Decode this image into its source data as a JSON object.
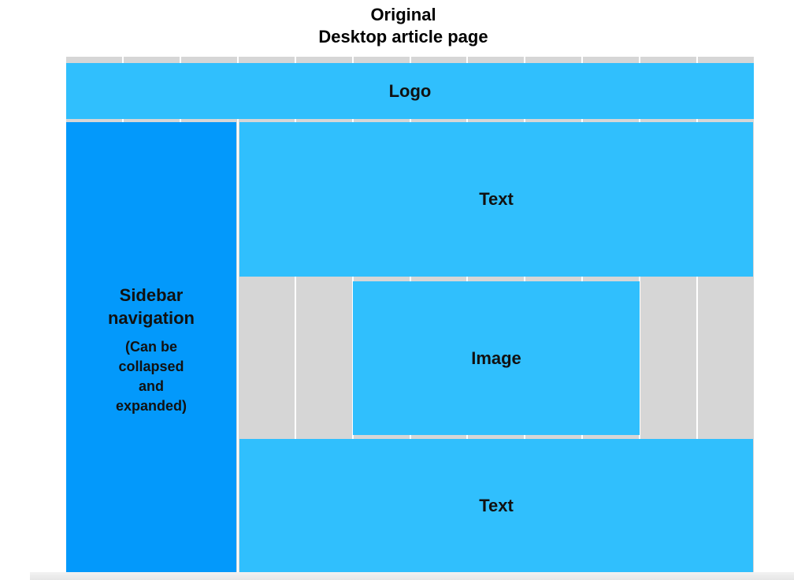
{
  "title": {
    "line1": "Original",
    "line2": "Desktop article page"
  },
  "diagram": {
    "grid_columns": 12,
    "blocks": {
      "logo": "Logo",
      "sidebar": "Sidebar navigation",
      "sidebar_note": "(Can be collapsed and expanded)",
      "text_top": "Text",
      "image": "Image",
      "text_bottom": "Text"
    }
  },
  "colors": {
    "light_block": "#30bffd",
    "dark_block": "#0399fb",
    "grid_background": "#d6d6d6"
  }
}
